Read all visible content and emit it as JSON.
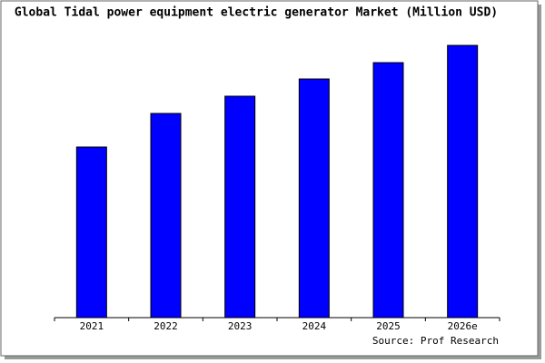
{
  "chart_data": {
    "type": "bar",
    "title": "Global Tidal power equipment electric generator Market (Million USD)",
    "source": "Source: Prof Research",
    "categories": [
      "2021",
      "2022",
      "2023",
      "2024",
      "2025",
      "2026e"
    ],
    "values": [
      188,
      225,
      244,
      263,
      281,
      300
    ],
    "color": "#0000ff",
    "ylim": [
      0,
      302
    ]
  }
}
